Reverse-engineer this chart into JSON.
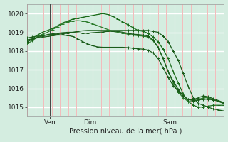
{
  "xlabel": "Pression niveau de la mer( hPa )",
  "background_color": "#d4ede0",
  "grid_white_color": "#ffffff",
  "grid_red_color": "#e88888",
  "line_colors": [
    "#1a5c1a",
    "#1a6b1a",
    "#2a7a2a",
    "#1a5c1a",
    "#1a5c1a"
  ],
  "ylim": [
    1014.5,
    1020.5
  ],
  "yticks": [
    1015,
    1016,
    1017,
    1018,
    1019,
    1020
  ],
  "xtick_positions": [
    0.115,
    0.32,
    0.725
  ],
  "xtick_labels": [
    "Ven",
    "Dim",
    "Sam"
  ],
  "vline_color": "#444444",
  "n_points": 40,
  "series": {
    "s1": [
      1018.7,
      1018.75,
      1018.8,
      1018.82,
      1018.85,
      1018.88,
      1018.9,
      1018.92,
      1018.95,
      1019.0,
      1019.05,
      1019.08,
      1019.1,
      1019.1,
      1019.1,
      1019.1,
      1019.1,
      1019.1,
      1019.1,
      1019.1,
      1019.1,
      1019.1,
      1019.1,
      1019.1,
      1019.1,
      1019.05,
      1019.0,
      1018.8,
      1018.5,
      1018.0,
      1017.5,
      1016.8,
      1016.1,
      1015.5,
      1015.2,
      1015.1,
      1015.0,
      1014.9,
      1014.85,
      1014.8
    ],
    "s2": [
      1018.5,
      1018.65,
      1018.85,
      1019.0,
      1019.1,
      1019.2,
      1019.35,
      1019.5,
      1019.6,
      1019.7,
      1019.75,
      1019.8,
      1019.85,
      1019.9,
      1019.95,
      1020.0,
      1019.95,
      1019.85,
      1019.7,
      1019.55,
      1019.4,
      1019.25,
      1019.1,
      1019.05,
      1018.95,
      1018.75,
      1018.5,
      1018.1,
      1017.6,
      1016.9,
      1016.3,
      1015.7,
      1015.3,
      1015.1,
      1015.0,
      1015.0,
      1015.05,
      1015.1,
      1015.1,
      1015.1
    ],
    "s3": [
      1018.4,
      1018.55,
      1018.75,
      1018.9,
      1019.0,
      1019.15,
      1019.3,
      1019.45,
      1019.55,
      1019.6,
      1019.62,
      1019.6,
      1019.55,
      1019.45,
      1019.35,
      1019.25,
      1019.15,
      1019.05,
      1019.0,
      1018.95,
      1018.9,
      1018.85,
      1018.82,
      1018.8,
      1018.75,
      1018.55,
      1018.2,
      1017.6,
      1016.9,
      1016.3,
      1015.8,
      1015.5,
      1015.3,
      1015.3,
      1015.4,
      1015.5,
      1015.5,
      1015.4,
      1015.3,
      1015.2
    ],
    "s4": [
      1018.5,
      1018.62,
      1018.72,
      1018.8,
      1018.88,
      1018.92,
      1018.95,
      1018.98,
      1019.0,
      1019.0,
      1018.98,
      1018.95,
      1018.95,
      1018.98,
      1019.0,
      1019.02,
      1019.05,
      1019.05,
      1019.05,
      1019.0,
      1018.95,
      1018.9,
      1018.88,
      1018.85,
      1018.8,
      1018.6,
      1018.2,
      1017.6,
      1016.9,
      1016.4,
      1015.95,
      1015.6,
      1015.4,
      1015.4,
      1015.5,
      1015.6,
      1015.55,
      1015.45,
      1015.35,
      1015.25
    ],
    "s5": [
      1018.6,
      1018.65,
      1018.7,
      1018.73,
      1018.78,
      1018.82,
      1018.85,
      1018.85,
      1018.83,
      1018.78,
      1018.65,
      1018.5,
      1018.38,
      1018.28,
      1018.22,
      1018.2,
      1018.2,
      1018.2,
      1018.2,
      1018.2,
      1018.18,
      1018.15,
      1018.12,
      1018.1,
      1018.05,
      1017.9,
      1017.6,
      1017.1,
      1016.6,
      1016.15,
      1015.85,
      1015.6,
      1015.4,
      1015.35,
      1015.38,
      1015.42,
      1015.42,
      1015.38,
      1015.32,
      1015.2
    ]
  }
}
